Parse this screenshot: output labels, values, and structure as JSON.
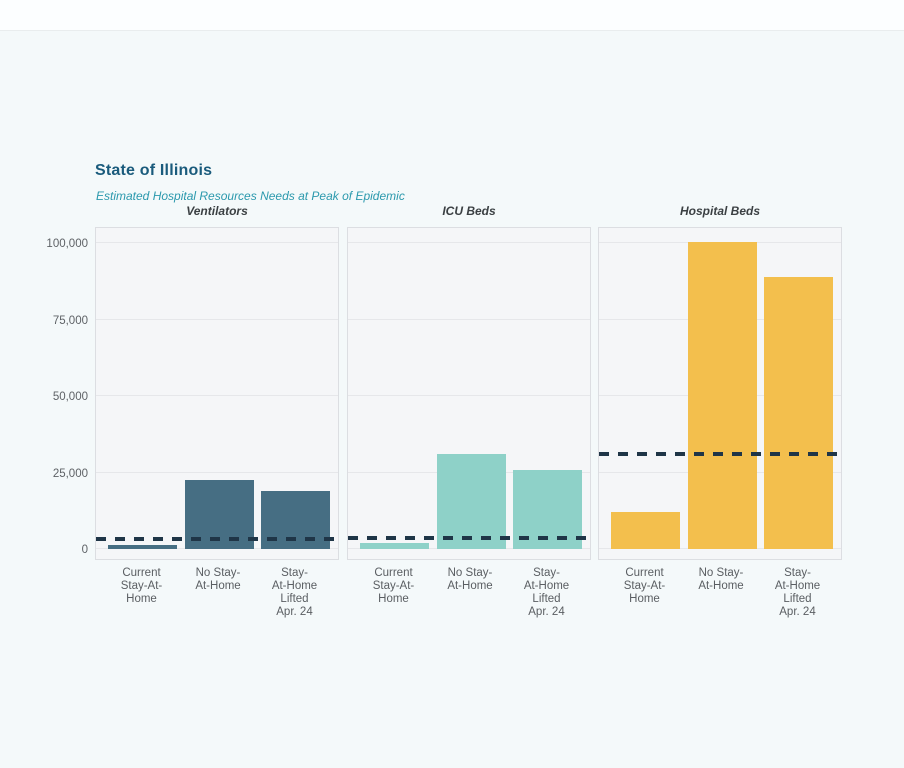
{
  "chart_data": {
    "type": "bar",
    "title": "State of Illinois",
    "subtitle": "Estimated Hospital Resources Needs at Peak of Epidemic",
    "categories": [
      "Current Stay-At-Home",
      "No Stay-At-Home",
      "Stay-At-Home Lifted Apr. 24"
    ],
    "category_label_lines": [
      [
        "Current",
        "Stay-At-",
        "Home"
      ],
      [
        "No Stay-",
        "At-Home"
      ],
      [
        "Stay-",
        "At-Home",
        "Lifted",
        "Apr. 24"
      ]
    ],
    "facets": [
      {
        "label": "Ventilators",
        "bar_color": "#466e83",
        "values": [
          1300,
          22500,
          19000
        ],
        "capacity_line": 3400
      },
      {
        "label": "ICU Beds",
        "bar_color": "#8ed1c8",
        "values": [
          2000,
          31000,
          26000
        ],
        "capacity_line": 3500
      },
      {
        "label": "Hospital Beds",
        "bar_color": "#f3bf4d",
        "values": [
          12000,
          100500,
          89000
        ],
        "capacity_line": 31000
      }
    ],
    "ylim": [
      0,
      108000
    ],
    "yticks": [
      0,
      25000,
      50000,
      75000,
      100000
    ],
    "ytick_labels": [
      "0",
      "25,000",
      "50,000",
      "75,000",
      "100,000"
    ],
    "capacity_line_color": "#1f3547",
    "capacity_line_style": "dashed",
    "grid": true,
    "legend": "none",
    "title_color": "#1a5b7c",
    "subtitle_color": "#2b99ad"
  }
}
